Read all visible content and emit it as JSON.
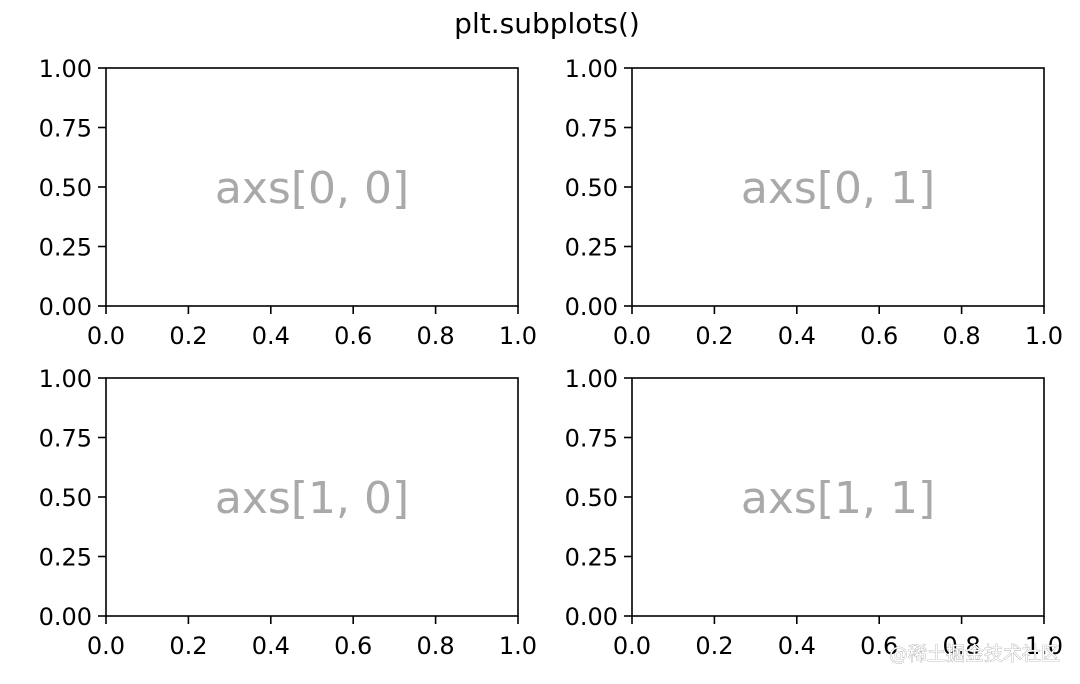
{
  "figure": {
    "suptitle": "plt.subplots()",
    "watermark": "@稀土掘金技术社区"
  },
  "colors": {
    "axes_frame": "#000000",
    "tick_text": "#000000",
    "placeholder_text": "#a9a9a9",
    "background": "#ffffff"
  },
  "chart_data": [
    {
      "type": "scatter",
      "label": "axs[0, 0]",
      "x": [],
      "y": [],
      "xlim": [
        0.0,
        1.0
      ],
      "ylim": [
        0.0,
        1.0
      ],
      "xticks": [
        "0.0",
        "0.2",
        "0.4",
        "0.6",
        "0.8",
        "1.0"
      ],
      "yticks": [
        "0.00",
        "0.25",
        "0.50",
        "0.75",
        "1.00"
      ],
      "grid": false
    },
    {
      "type": "scatter",
      "label": "axs[0, 1]",
      "x": [],
      "y": [],
      "xlim": [
        0.0,
        1.0
      ],
      "ylim": [
        0.0,
        1.0
      ],
      "xticks": [
        "0.0",
        "0.2",
        "0.4",
        "0.6",
        "0.8",
        "1.0"
      ],
      "yticks": [
        "0.00",
        "0.25",
        "0.50",
        "0.75",
        "1.00"
      ],
      "grid": false
    },
    {
      "type": "scatter",
      "label": "axs[1, 0]",
      "x": [],
      "y": [],
      "xlim": [
        0.0,
        1.0
      ],
      "ylim": [
        0.0,
        1.0
      ],
      "xticks": [
        "0.0",
        "0.2",
        "0.4",
        "0.6",
        "0.8",
        "1.0"
      ],
      "yticks": [
        "0.00",
        "0.25",
        "0.50",
        "0.75",
        "1.00"
      ],
      "grid": false
    },
    {
      "type": "scatter",
      "label": "axs[1, 1]",
      "x": [],
      "y": [],
      "xlim": [
        0.0,
        1.0
      ],
      "ylim": [
        0.0,
        1.0
      ],
      "xticks": [
        "0.0",
        "0.2",
        "0.4",
        "0.6",
        "0.8",
        "1.0"
      ],
      "yticks": [
        "0.00",
        "0.25",
        "0.50",
        "0.75",
        "1.00"
      ],
      "grid": false
    }
  ]
}
